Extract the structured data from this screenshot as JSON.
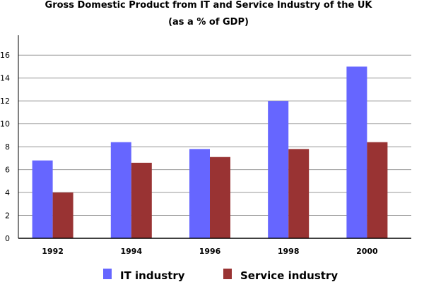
{
  "chart_data": {
    "type": "bar",
    "title": "Gross Domestic Product from IT and Service Industry of the UK",
    "subtitle": "(as a % of GDP)",
    "categories": [
      "1992",
      "1994",
      "1996",
      "1998",
      "2000"
    ],
    "series": [
      {
        "name": "IT industry",
        "color": "#6666ff",
        "values": [
          6.8,
          8.4,
          7.8,
          12,
          15
        ]
      },
      {
        "name": "Service industry",
        "color": "#993333",
        "values": [
          4,
          6.6,
          7.1,
          7.8,
          8.4
        ]
      }
    ],
    "xlabel": "",
    "ylabel": "",
    "ylim": [
      0,
      17
    ],
    "yticks": [
      0,
      2,
      4,
      6,
      8,
      10,
      12,
      14,
      16
    ],
    "grid": "horizontal",
    "legend_position": "bottom"
  }
}
